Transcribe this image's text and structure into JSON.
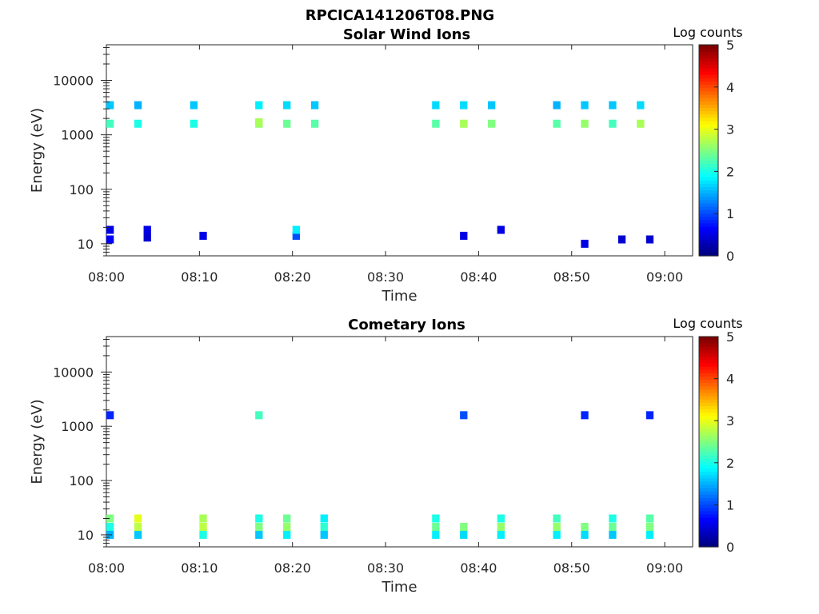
{
  "figure_title": "RPCICA141206T08.PNG",
  "chart_data": [
    {
      "type": "heatmap",
      "title": "Solar Wind Ions",
      "xlabel": "Time",
      "ylabel": "Energy (eV)",
      "x_scale": "time",
      "y_scale": "log",
      "xlim": [
        "08:00",
        "09:03"
      ],
      "ylim": [
        6,
        45000
      ],
      "x_ticks": [
        "08:00",
        "08:10",
        "08:20",
        "08:30",
        "08:40",
        "08:50",
        "09:00"
      ],
      "y_ticks": [
        10,
        100,
        1000,
        10000
      ],
      "y_tick_labels": [
        "10",
        "100",
        "1000",
        "10000"
      ],
      "colorbar": {
        "label": "Log counts",
        "range": [
          0,
          5
        ],
        "ticks": [
          "0",
          "1",
          "2",
          "3",
          "4",
          "5"
        ],
        "colormap": "jet"
      },
      "cells": [
        {
          "t": "08:00",
          "e": 3500,
          "v": 1.6
        },
        {
          "t": "08:00",
          "e": 1600,
          "v": 2.2
        },
        {
          "t": "08:00",
          "e": 12,
          "v": 0.6
        },
        {
          "t": "08:00",
          "e": 18,
          "v": 0.5
        },
        {
          "t": "08:03",
          "e": 3500,
          "v": 1.5
        },
        {
          "t": "08:03",
          "e": 1600,
          "v": 2.0
        },
        {
          "t": "08:04",
          "e": 18,
          "v": 0.5
        },
        {
          "t": "08:04",
          "e": 13,
          "v": 0.4
        },
        {
          "t": "08:09",
          "e": 3500,
          "v": 1.6
        },
        {
          "t": "08:09",
          "e": 1600,
          "v": 2.0
        },
        {
          "t": "08:10",
          "e": 14,
          "v": 0.5
        },
        {
          "t": "08:16",
          "e": 3500,
          "v": 1.8
        },
        {
          "t": "08:16",
          "e": 1600,
          "v": 2.6
        },
        {
          "t": "08:16",
          "e": 1700,
          "v": 2.7
        },
        {
          "t": "08:19",
          "e": 3500,
          "v": 1.7
        },
        {
          "t": "08:19",
          "e": 1600,
          "v": 2.4
        },
        {
          "t": "08:20",
          "e": 14,
          "v": 1.0
        },
        {
          "t": "08:20",
          "e": 18,
          "v": 1.8
        },
        {
          "t": "08:22",
          "e": 3500,
          "v": 1.6
        },
        {
          "t": "08:22",
          "e": 1600,
          "v": 2.3
        },
        {
          "t": "08:35",
          "e": 3500,
          "v": 1.7
        },
        {
          "t": "08:35",
          "e": 1600,
          "v": 2.3
        },
        {
          "t": "08:38",
          "e": 3500,
          "v": 1.7
        },
        {
          "t": "08:38",
          "e": 1600,
          "v": 2.7
        },
        {
          "t": "08:38",
          "e": 14,
          "v": 0.5
        },
        {
          "t": "08:41",
          "e": 3500,
          "v": 1.6
        },
        {
          "t": "08:41",
          "e": 1600,
          "v": 2.5
        },
        {
          "t": "08:42",
          "e": 18,
          "v": 0.5
        },
        {
          "t": "08:48",
          "e": 3500,
          "v": 1.5
        },
        {
          "t": "08:48",
          "e": 1600,
          "v": 2.3
        },
        {
          "t": "08:51",
          "e": 3500,
          "v": 1.6
        },
        {
          "t": "08:51",
          "e": 1600,
          "v": 2.6
        },
        {
          "t": "08:51",
          "e": 10,
          "v": 0.5
        },
        {
          "t": "08:54",
          "e": 3500,
          "v": 1.6
        },
        {
          "t": "08:54",
          "e": 1600,
          "v": 2.2
        },
        {
          "t": "08:55",
          "e": 12,
          "v": 0.4
        },
        {
          "t": "08:57",
          "e": 3500,
          "v": 1.7
        },
        {
          "t": "08:57",
          "e": 1600,
          "v": 2.7
        },
        {
          "t": "08:58",
          "e": 12,
          "v": 0.4
        }
      ]
    },
    {
      "type": "heatmap",
      "title": "Cometary Ions",
      "xlabel": "Time",
      "ylabel": "Energy (eV)",
      "x_scale": "time",
      "y_scale": "log",
      "xlim": [
        "08:00",
        "09:03"
      ],
      "ylim": [
        6,
        45000
      ],
      "x_ticks": [
        "08:00",
        "08:10",
        "08:20",
        "08:30",
        "08:40",
        "08:50",
        "09:00"
      ],
      "y_ticks": [
        10,
        100,
        1000,
        10000
      ],
      "y_tick_labels": [
        "10",
        "100",
        "1000",
        "10000"
      ],
      "colorbar": {
        "label": "Log counts",
        "range": [
          0,
          5
        ],
        "ticks": [
          "0",
          "1",
          "2",
          "3",
          "4",
          "5"
        ],
        "colormap": "jet"
      },
      "cells": [
        {
          "t": "08:00",
          "e": 10,
          "v": 1.5
        },
        {
          "t": "08:00",
          "e": 14,
          "v": 2.0
        },
        {
          "t": "08:00",
          "e": 20,
          "v": 2.5
        },
        {
          "t": "08:00",
          "e": 1600,
          "v": 0.8
        },
        {
          "t": "08:03",
          "e": 10,
          "v": 1.6
        },
        {
          "t": "08:03",
          "e": 14,
          "v": 2.8
        },
        {
          "t": "08:03",
          "e": 20,
          "v": 3.0
        },
        {
          "t": "08:10",
          "e": 10,
          "v": 2.0
        },
        {
          "t": "08:10",
          "e": 14,
          "v": 2.8
        },
        {
          "t": "08:10",
          "e": 20,
          "v": 2.7
        },
        {
          "t": "08:16",
          "e": 10,
          "v": 1.6
        },
        {
          "t": "08:16",
          "e": 14,
          "v": 2.5
        },
        {
          "t": "08:16",
          "e": 20,
          "v": 2.0
        },
        {
          "t": "08:16",
          "e": 1600,
          "v": 2.2
        },
        {
          "t": "08:19",
          "e": 10,
          "v": 1.8
        },
        {
          "t": "08:19",
          "e": 14,
          "v": 2.6
        },
        {
          "t": "08:19",
          "e": 20,
          "v": 2.4
        },
        {
          "t": "08:23",
          "e": 10,
          "v": 1.6
        },
        {
          "t": "08:23",
          "e": 14,
          "v": 2.1
        },
        {
          "t": "08:23",
          "e": 20,
          "v": 1.8
        },
        {
          "t": "08:35",
          "e": 10,
          "v": 1.8
        },
        {
          "t": "08:35",
          "e": 14,
          "v": 2.4
        },
        {
          "t": "08:35",
          "e": 20,
          "v": 2.0
        },
        {
          "t": "08:38",
          "e": 10,
          "v": 1.7
        },
        {
          "t": "08:38",
          "e": 14,
          "v": 2.5
        },
        {
          "t": "08:38",
          "e": 1600,
          "v": 1.0
        },
        {
          "t": "08:42",
          "e": 10,
          "v": 1.8
        },
        {
          "t": "08:42",
          "e": 14,
          "v": 2.6
        },
        {
          "t": "08:42",
          "e": 20,
          "v": 2.0
        },
        {
          "t": "08:48",
          "e": 10,
          "v": 1.8
        },
        {
          "t": "08:48",
          "e": 14,
          "v": 2.6
        },
        {
          "t": "08:48",
          "e": 20,
          "v": 2.2
        },
        {
          "t": "08:51",
          "e": 10,
          "v": 1.7
        },
        {
          "t": "08:51",
          "e": 14,
          "v": 2.5
        },
        {
          "t": "08:51",
          "e": 1600,
          "v": 0.8
        },
        {
          "t": "08:54",
          "e": 10,
          "v": 1.6
        },
        {
          "t": "08:54",
          "e": 14,
          "v": 2.4
        },
        {
          "t": "08:54",
          "e": 20,
          "v": 2.0
        },
        {
          "t": "08:58",
          "e": 10,
          "v": 1.8
        },
        {
          "t": "08:58",
          "e": 14,
          "v": 2.5
        },
        {
          "t": "08:58",
          "e": 20,
          "v": 2.3
        },
        {
          "t": "08:58",
          "e": 1600,
          "v": 0.8
        }
      ]
    }
  ]
}
